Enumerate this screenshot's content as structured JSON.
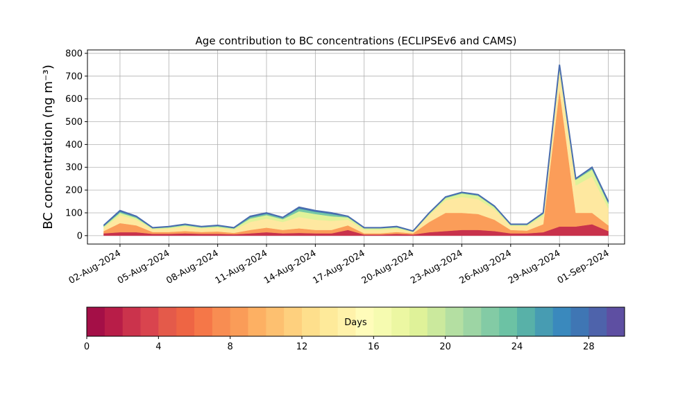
{
  "chart_data": {
    "type": "stacked_area",
    "title": "Age contribution to BC concentrations (ECLIPSEv6 and CAMS)",
    "ylabel": "BC concentration (ng m⁻³)",
    "x": [
      "01-Aug-2024",
      "02-Aug-2024",
      "03-Aug-2024",
      "04-Aug-2024",
      "05-Aug-2024",
      "06-Aug-2024",
      "07-Aug-2024",
      "08-Aug-2024",
      "09-Aug-2024",
      "10-Aug-2024",
      "11-Aug-2024",
      "12-Aug-2024",
      "13-Aug-2024",
      "14-Aug-2024",
      "15-Aug-2024",
      "16-Aug-2024",
      "17-Aug-2024",
      "18-Aug-2024",
      "19-Aug-2024",
      "20-Aug-2024",
      "21-Aug-2024",
      "22-Aug-2024",
      "23-Aug-2024",
      "24-Aug-2024",
      "25-Aug-2024",
      "26-Aug-2024",
      "27-Aug-2024",
      "28-Aug-2024",
      "29-Aug-2024",
      "30-Aug-2024",
      "31-Aug-2024",
      "01-Sep-2024"
    ],
    "series": [
      {
        "color": "#c8324c",
        "values": [
          10,
          15,
          15,
          8,
          8,
          10,
          8,
          8,
          6,
          10,
          15,
          10,
          12,
          10,
          10,
          25,
          5,
          5,
          8,
          5,
          15,
          20,
          25,
          25,
          20,
          10,
          10,
          15,
          40,
          40,
          50,
          20
        ]
      },
      {
        "color": "#fb9d59",
        "values": [
          10,
          40,
          30,
          8,
          8,
          10,
          8,
          10,
          6,
          15,
          20,
          15,
          20,
          15,
          15,
          20,
          5,
          5,
          8,
          5,
          45,
          80,
          75,
          70,
          50,
          15,
          12,
          35,
          600,
          60,
          50,
          25
        ]
      },
      {
        "color": "#fee8a0",
        "values": [
          15,
          35,
          25,
          12,
          15,
          20,
          16,
          17,
          14,
          35,
          40,
          35,
          50,
          45,
          40,
          25,
          15,
          15,
          14,
          6,
          30,
          55,
          70,
          65,
          45,
          18,
          20,
          35,
          80,
          120,
          160,
          75
        ]
      },
      {
        "color": "#dff299",
        "values": [
          5,
          10,
          8,
          4,
          5,
          5,
          4,
          5,
          5,
          15,
          15,
          12,
          25,
          25,
          20,
          10,
          7,
          7,
          6,
          2,
          6,
          10,
          15,
          15,
          10,
          4,
          5,
          10,
          20,
          25,
          30,
          20
        ]
      },
      {
        "color": "#74c7a5",
        "values": [
          3,
          5,
          4,
          2,
          2,
          3,
          2,
          3,
          2,
          6,
          6,
          5,
          12,
          10,
          10,
          3,
          2,
          2,
          2,
          1,
          2,
          3,
          3,
          3,
          3,
          2,
          2,
          3,
          6,
          3,
          6,
          6
        ]
      },
      {
        "color": "#3f75b3",
        "values": [
          2,
          5,
          3,
          1,
          2,
          2,
          2,
          2,
          2,
          4,
          4,
          3,
          6,
          5,
          5,
          2,
          1,
          1,
          2,
          1,
          2,
          2,
          2,
          2,
          2,
          1,
          1,
          2,
          4,
          2,
          4,
          4
        ]
      }
    ],
    "outline_color": "#4a6cae",
    "xlim": [
      "31-Jul-2024",
      "02-Sep-2024"
    ],
    "xticks": [
      "02-Aug-2024",
      "05-Aug-2024",
      "08-Aug-2024",
      "11-Aug-2024",
      "14-Aug-2024",
      "17-Aug-2024",
      "20-Aug-2024",
      "23-Aug-2024",
      "26-Aug-2024",
      "29-Aug-2024",
      "01-Sep-2024"
    ],
    "ylim": [
      -37,
      815
    ],
    "yticks": [
      0,
      100,
      200,
      300,
      400,
      500,
      600,
      700,
      800
    ],
    "grid": true,
    "colorbar": {
      "label": "Days",
      "lim": [
        0,
        30
      ],
      "ticks": [
        0,
        4,
        8,
        12,
        16,
        20,
        24,
        28
      ],
      "colors": [
        "#a40f47",
        "#b81d48",
        "#cb334c",
        "#d9444e",
        "#e45a4a",
        "#ee6544",
        "#f57748",
        "#f88d52",
        "#fa9c58",
        "#fdb063",
        "#fdc070",
        "#fed07e",
        "#fedf8c",
        "#feea9a",
        "#fff2aa",
        "#fffcba",
        "#f6fbb0",
        "#ecf7a2",
        "#dff299",
        "#cbe99d",
        "#b4dfa2",
        "#9dd5a4",
        "#83cba5",
        "#6cc2a4",
        "#58b1a8",
        "#479cb2",
        "#3a89bd",
        "#3f76b4",
        "#4e63ab",
        "#5e4fa2"
      ]
    }
  }
}
